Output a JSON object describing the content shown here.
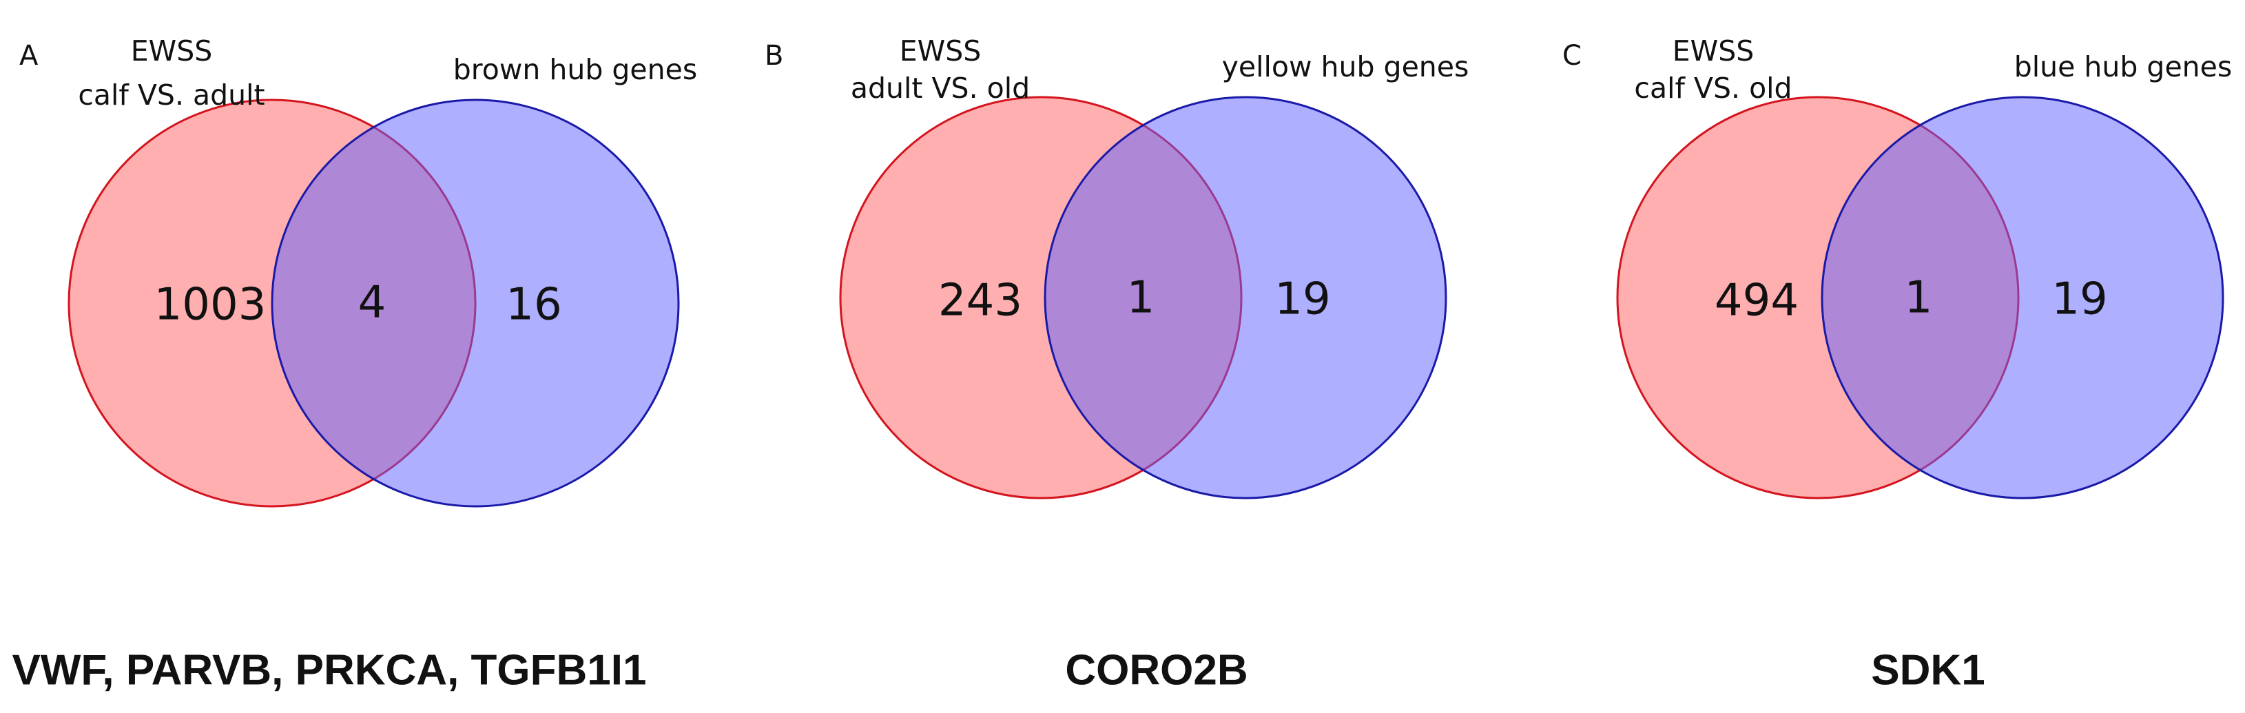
{
  "panels": [
    {
      "letter": "A",
      "left_set": [
        "EWSS",
        "calf VS. adult"
      ],
      "right_set": "brown hub genes",
      "left_only": 1003,
      "overlap": 4,
      "right_only": 16,
      "genes": "VWF, PARVB, PRKCA, TGFB1I1"
    },
    {
      "letter": "B",
      "left_set": [
        "EWSS",
        "adult VS. old"
      ],
      "right_set": "yellow hub genes",
      "left_only": 243,
      "overlap": 1,
      "right_only": 19,
      "genes": "CORO2B"
    },
    {
      "letter": "C",
      "left_set": [
        "EWSS",
        "calf VS. old"
      ],
      "right_set": "blue hub genes",
      "left_only": 494,
      "overlap": 1,
      "right_only": 19,
      "genes": "SDK1"
    }
  ]
}
